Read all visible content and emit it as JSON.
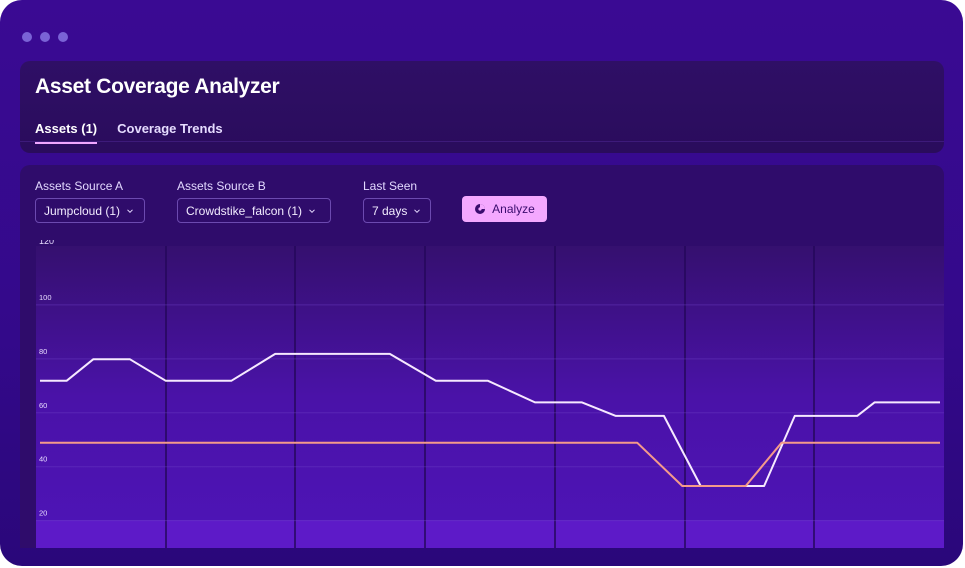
{
  "window": {
    "title": "Asset Coverage Analyzer"
  },
  "tabs": [
    {
      "label": "Assets (1)",
      "active": true
    },
    {
      "label": "Coverage Trends",
      "active": false
    }
  ],
  "filters": {
    "source_a": {
      "label": "Assets Source A",
      "value": "Jumpcloud (1)"
    },
    "source_b": {
      "label": "Assets Source B",
      "value": "Crowdstike_falcon (1)"
    },
    "last_seen": {
      "label": "Last Seen",
      "value": "7 days"
    }
  },
  "analyze_button": {
    "label": "Analyze",
    "icon": "analyze-icon"
  },
  "colors": {
    "accent": "#f4a8ff",
    "line_primary": "#f6e9ff",
    "line_secondary": "#f59a8a"
  },
  "chart_data": {
    "type": "line",
    "y_ticks": [
      "120",
      "100",
      "80",
      "60",
      "40",
      "20"
    ],
    "ylim": [
      8,
      120
    ],
    "grid": true,
    "series": [
      {
        "color": "#f6e9ff",
        "points": [
          [
            0,
            70
          ],
          [
            0.26,
            70
          ],
          [
            0.52,
            78
          ],
          [
            0.88,
            78
          ],
          [
            1.23,
            70
          ],
          [
            1.87,
            70
          ],
          [
            2.3,
            80
          ],
          [
            3.42,
            80
          ],
          [
            3.87,
            70
          ],
          [
            4.38,
            70
          ],
          [
            4.84,
            62
          ],
          [
            5.3,
            62
          ],
          [
            5.63,
            57
          ],
          [
            6.1,
            57
          ],
          [
            6.46,
            31
          ],
          [
            7.08,
            31
          ],
          [
            7.38,
            57
          ],
          [
            7.99,
            57
          ],
          [
            8.16,
            62
          ],
          [
            8.8,
            62
          ]
        ]
      },
      {
        "color": "#f59a8a",
        "points": [
          [
            0,
            47
          ],
          [
            5.84,
            47
          ],
          [
            6.28,
            31
          ],
          [
            6.9,
            31
          ],
          [
            7.25,
            47
          ],
          [
            8.8,
            47
          ]
        ]
      }
    ]
  }
}
